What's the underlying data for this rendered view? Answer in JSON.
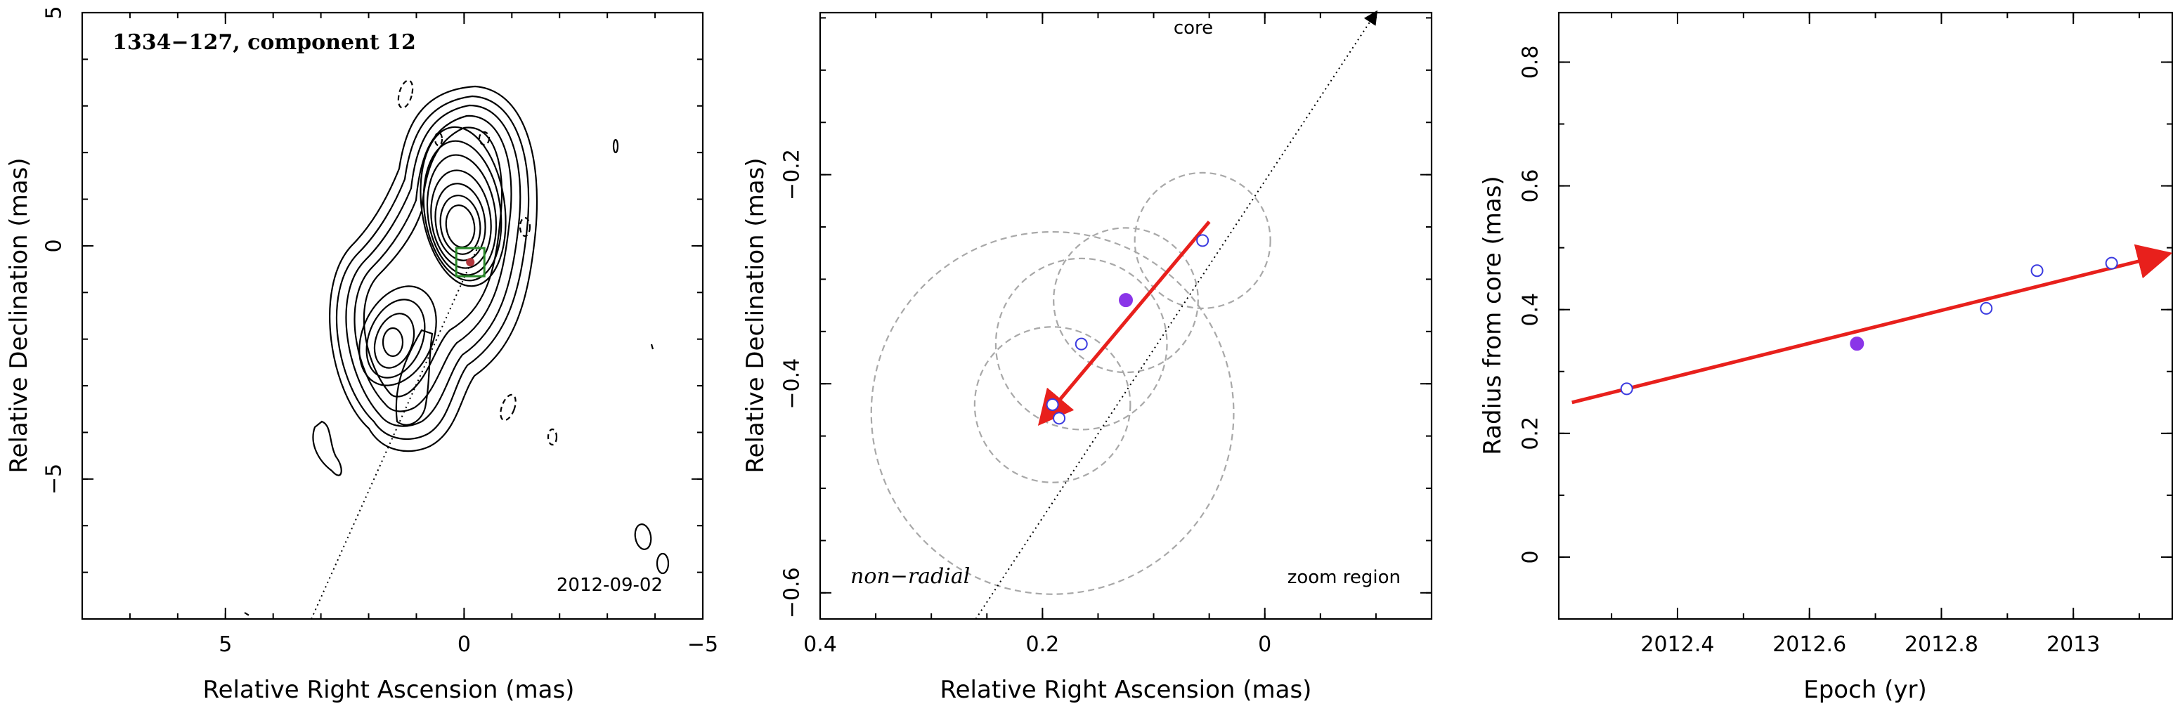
{
  "chart_data": [
    {
      "type": "contour",
      "title": "1334−127, component 12",
      "epoch_label": "2012-09-02",
      "xlabel": "Relative Right Ascension (mas)",
      "ylabel": "Relative Declination (mas)",
      "xlim": [
        8,
        -5
      ],
      "ylim": [
        -8,
        5
      ],
      "xticks": [
        {
          "v": 5,
          "label": "5"
        },
        {
          "v": 0,
          "label": "0"
        },
        {
          "v": -5,
          "label": "−5"
        }
      ],
      "yticks": [
        {
          "v": 5,
          "label": "5"
        },
        {
          "v": 0,
          "label": "0"
        },
        {
          "v": -5,
          "label": "−5"
        }
      ],
      "core_line": [
        [
          3.2,
          -8.0
        ],
        [
          -0.3,
          0.0
        ]
      ],
      "component_marker": {
        "x": -0.13,
        "y": -0.35,
        "box_color": "#2a8a2a",
        "point_color": "#b1363d"
      }
    },
    {
      "type": "scatter",
      "xlabel": "Relative Right Ascension (mas)",
      "ylabel": "Relative Declination (mas)",
      "xlim": [
        0.4,
        -0.15
      ],
      "ylim": [
        -0.625,
        -0.045
      ],
      "xticks": [
        {
          "v": 0.4,
          "label": "0.4"
        },
        {
          "v": 0.2,
          "label": "0.2"
        },
        {
          "v": 0,
          "label": "0"
        }
      ],
      "yticks": [
        {
          "v": -0.2,
          "label": "−0.2"
        },
        {
          "v": -0.4,
          "label": "−0.4"
        },
        {
          "v": -0.6,
          "label": "−0.6"
        }
      ],
      "core_label": "core",
      "left_label": "non−radial",
      "right_label": "zoom region",
      "points": [
        {
          "x": 0.191,
          "y": -0.42,
          "filled": false
        },
        {
          "x": 0.185,
          "y": -0.433,
          "filled": false
        },
        {
          "x": 0.165,
          "y": -0.362,
          "filled": false
        },
        {
          "x": 0.125,
          "y": -0.32,
          "filled": true
        },
        {
          "x": 0.056,
          "y": -0.263,
          "filled": false
        }
      ],
      "circles": [
        {
          "x": 0.191,
          "y": -0.42,
          "r": 0.07
        },
        {
          "x": 0.165,
          "y": -0.362,
          "r": 0.077
        },
        {
          "x": 0.125,
          "y": -0.32,
          "r": 0.065
        },
        {
          "x": 0.056,
          "y": -0.263,
          "r": 0.061
        },
        {
          "x": 0.191,
          "y": -0.428,
          "r": 0.163
        }
      ],
      "core_line": [
        [
          0.26,
          -0.625
        ],
        [
          -0.1,
          -0.045
        ]
      ],
      "trajectory_arrow": {
        "from": [
          0.05,
          -0.245
        ],
        "to": [
          0.2,
          -0.435
        ],
        "color": "#e8201c"
      },
      "filled_color": "#8a35e8",
      "open_color": "#3b3be0"
    },
    {
      "type": "scatter",
      "xlabel": "Epoch (yr)",
      "ylabel": "Radius from core (mas)",
      "xlim": [
        2012.22,
        2013.15
      ],
      "ylim": [
        -0.1,
        0.88
      ],
      "xticks": [
        {
          "v": 2012.4,
          "label": "2012.4"
        },
        {
          "v": 2012.6,
          "label": "2012.6"
        },
        {
          "v": 2012.8,
          "label": "2012.8"
        },
        {
          "v": 2013.0,
          "label": "2013"
        }
      ],
      "yticks": [
        {
          "v": 0,
          "label": "0"
        },
        {
          "v": 0.2,
          "label": "0.2"
        },
        {
          "v": 0.4,
          "label": "0.4"
        },
        {
          "v": 0.6,
          "label": "0.6"
        },
        {
          "v": 0.8,
          "label": "0.8"
        }
      ],
      "points": [
        {
          "x": 2012.323,
          "y": 0.272,
          "filled": false
        },
        {
          "x": 2012.672,
          "y": 0.345,
          "filled": true
        },
        {
          "x": 2012.868,
          "y": 0.402,
          "filled": false
        },
        {
          "x": 2012.945,
          "y": 0.463,
          "filled": false
        },
        {
          "x": 2013.058,
          "y": 0.475,
          "filled": false
        }
      ],
      "fit_line": {
        "from": [
          2012.24,
          0.25
        ],
        "to": [
          2013.14,
          0.489
        ],
        "color": "#e8201c"
      },
      "filled_color": "#8a35e8",
      "open_color": "#3b3be0"
    }
  ]
}
